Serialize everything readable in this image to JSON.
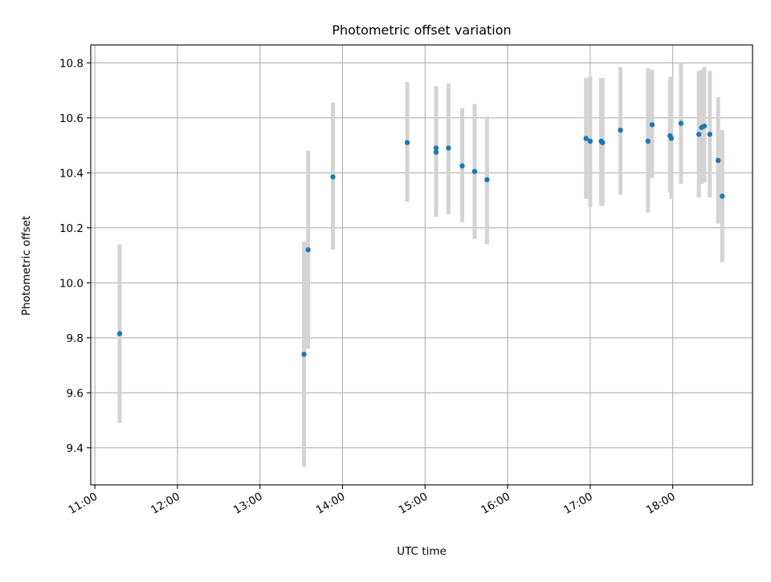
{
  "chart_data": {
    "type": "scatter",
    "title": "Photometric offset variation",
    "xlabel": "UTC time",
    "ylabel": "Photometric offset",
    "xlim": [
      "10:57",
      "18:58"
    ],
    "ylim": [
      9.265,
      10.865
    ],
    "xticks": [
      "11:00",
      "12:00",
      "13:00",
      "14:00",
      "15:00",
      "16:00",
      "17:00",
      "18:00"
    ],
    "yticks": [
      "9.4",
      "9.6",
      "9.8",
      "10.0",
      "10.2",
      "10.4",
      "10.6",
      "10.8"
    ],
    "grid": true,
    "point_color": "#1f77b4",
    "errorbar_color": "#d3d3d3",
    "points": [
      {
        "t": "11:18",
        "y": 9.815,
        "lo": 9.49,
        "hi": 10.14
      },
      {
        "t": "13:32",
        "y": 9.74,
        "lo": 9.33,
        "hi": 10.15
      },
      {
        "t": "13:35",
        "y": 10.12,
        "lo": 9.76,
        "hi": 10.48
      },
      {
        "t": "13:53",
        "y": 10.385,
        "lo": 10.12,
        "hi": 10.655
      },
      {
        "t": "14:47",
        "y": 10.51,
        "lo": 10.295,
        "hi": 10.73
      },
      {
        "t": "15:08",
        "y": 10.475,
        "lo": 10.24,
        "hi": 10.715
      },
      {
        "t": "15:08",
        "y": 10.49,
        "lo": 10.26,
        "hi": 10.715
      },
      {
        "t": "15:17",
        "y": 10.49,
        "lo": 10.25,
        "hi": 10.725
      },
      {
        "t": "15:27",
        "y": 10.425,
        "lo": 10.22,
        "hi": 10.635
      },
      {
        "t": "15:36",
        "y": 10.405,
        "lo": 10.16,
        "hi": 10.65
      },
      {
        "t": "15:45",
        "y": 10.375,
        "lo": 10.14,
        "hi": 10.605
      },
      {
        "t": "16:57",
        "y": 10.525,
        "lo": 10.305,
        "hi": 10.745
      },
      {
        "t": "17:00",
        "y": 10.515,
        "lo": 10.275,
        "hi": 10.75
      },
      {
        "t": "17:08",
        "y": 10.515,
        "lo": 10.28,
        "hi": 10.745
      },
      {
        "t": "17:09",
        "y": 10.51,
        "lo": 10.28,
        "hi": 10.745
      },
      {
        "t": "17:22",
        "y": 10.555,
        "lo": 10.32,
        "hi": 10.785
      },
      {
        "t": "17:42",
        "y": 10.515,
        "lo": 10.255,
        "hi": 10.78
      },
      {
        "t": "17:45",
        "y": 10.575,
        "lo": 10.38,
        "hi": 10.775
      },
      {
        "t": "17:58",
        "y": 10.535,
        "lo": 10.33,
        "hi": 10.745
      },
      {
        "t": "17:59",
        "y": 10.525,
        "lo": 10.305,
        "hi": 10.75
      },
      {
        "t": "18:06",
        "y": 10.58,
        "lo": 10.36,
        "hi": 10.8
      },
      {
        "t": "18:19",
        "y": 10.54,
        "lo": 10.31,
        "hi": 10.77
      },
      {
        "t": "18:21",
        "y": 10.565,
        "lo": 10.36,
        "hi": 10.775
      },
      {
        "t": "18:23",
        "y": 10.57,
        "lo": 10.365,
        "hi": 10.785
      },
      {
        "t": "18:27",
        "y": 10.54,
        "lo": 10.31,
        "hi": 10.77
      },
      {
        "t": "18:33",
        "y": 10.445,
        "lo": 10.215,
        "hi": 10.675
      },
      {
        "t": "18:36",
        "y": 10.315,
        "lo": 10.075,
        "hi": 10.555
      }
    ]
  }
}
